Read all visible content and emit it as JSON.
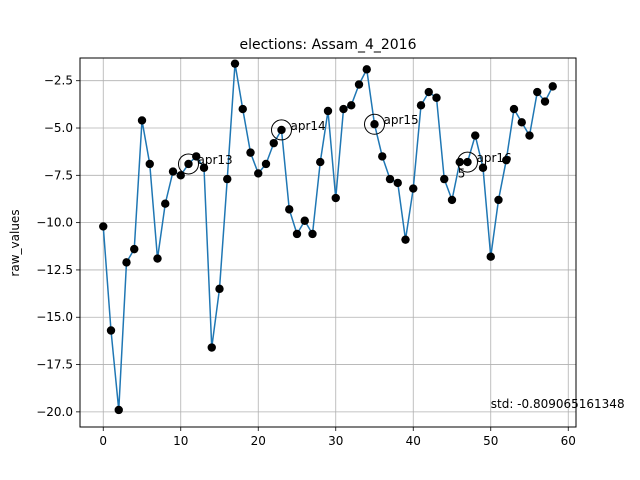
{
  "chart_data": {
    "type": "line",
    "title": "elections: Assam_4_2016",
    "xlabel": "",
    "ylabel": "raw_values",
    "xlim": [
      -3,
      61
    ],
    "ylim": [
      -20.8,
      -1.3
    ],
    "xticks": [
      0,
      10,
      20,
      30,
      40,
      50,
      60
    ],
    "yticks": [
      -20.0,
      -17.5,
      -15.0,
      -12.5,
      -10.0,
      -7.5,
      -5.0,
      -2.5
    ],
    "xtick_labels": [
      "0",
      "10",
      "20",
      "30",
      "40",
      "50",
      "60"
    ],
    "ytick_labels": [
      "−20.0",
      "−17.5",
      "−15.0",
      "−12.5",
      "−10.0",
      "−7.5",
      "−5.0",
      "−2.5"
    ],
    "grid": true,
    "line_color": "#1f77b4",
    "marker_color": "#000000",
    "series": [
      {
        "x": [
          0,
          1,
          2,
          3,
          4,
          5,
          6,
          7,
          8,
          9,
          10,
          11,
          12,
          13,
          14,
          15,
          16,
          17,
          18,
          19,
          20,
          21,
          22,
          23,
          24,
          25,
          26,
          27,
          28,
          29,
          30,
          31,
          32,
          33,
          34,
          35,
          36,
          37,
          38,
          39,
          40,
          41,
          42,
          43,
          44,
          45,
          46,
          47,
          48,
          49,
          50,
          51,
          52,
          53,
          54,
          55,
          56,
          57,
          58
        ],
        "y": [
          -10.2,
          -15.7,
          -19.9,
          -12.1,
          -11.4,
          -4.6,
          -6.9,
          -11.9,
          -9.0,
          -7.3,
          -7.5,
          -6.9,
          -6.5,
          -7.1,
          -16.6,
          -13.5,
          -7.7,
          -1.6,
          -4.0,
          -6.3,
          -7.4,
          -6.9,
          -5.8,
          -5.1,
          -9.3,
          -10.6,
          -9.9,
          -10.6,
          -6.8,
          -4.1,
          -8.7,
          -4.0,
          -3.8,
          -2.7,
          -1.9,
          -4.8,
          -6.5,
          -7.7,
          -7.9,
          -10.9,
          -8.2,
          -3.8,
          -3.1,
          -3.4,
          -7.7,
          -8.8,
          -6.8,
          -6.8,
          -5.4,
          -7.1,
          -11.8,
          -8.8,
          -6.7,
          -4.0,
          -4.7,
          -5.4,
          -3.1,
          -3.6,
          -2.8
        ]
      }
    ],
    "annotations": [
      {
        "label": "apr13",
        "x": 11,
        "y": -6.9
      },
      {
        "label": "apr14",
        "x": 23,
        "y": -5.1
      },
      {
        "label": "apr15",
        "x": 35,
        "y": -4.8
      },
      {
        "label": "apr16",
        "x": 47,
        "y": -6.8
      }
    ],
    "stray_label": {
      "text": "5",
      "x": 46,
      "y": -7.4
    },
    "std_text": {
      "text": "std: -0.809065161348",
      "x": 50,
      "y": -19.9
    }
  }
}
